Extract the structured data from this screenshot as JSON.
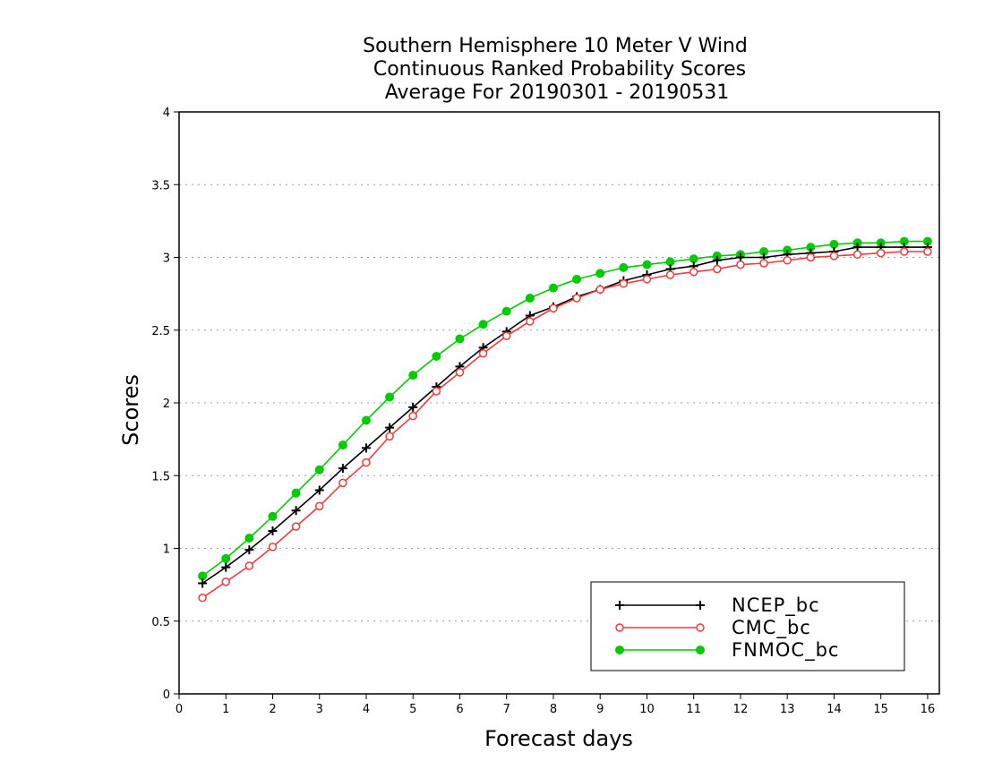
{
  "chart_data": {
    "type": "line",
    "title": [
      "Southern Hemisphere 10 Meter V Wind",
      "Continuous Ranked Probability Scores",
      "Average For 20190301 - 20190531"
    ],
    "xlabel": "Forecast days",
    "ylabel": "Scores",
    "xlim": [
      0,
      16.25
    ],
    "ylim": [
      0,
      4
    ],
    "xticks": [
      "0",
      "1",
      "2",
      "3",
      "4",
      "5",
      "6",
      "7",
      "8",
      "9",
      "10",
      "11",
      "12",
      "13",
      "14",
      "15",
      "16"
    ],
    "yticks": [
      "0",
      "0.5",
      "1",
      "1.5",
      "2",
      "2.5",
      "3",
      "3.5",
      "4"
    ],
    "grid": "horizontal dotted",
    "legend_position": "bottom-right",
    "x": [
      0.5,
      1.0,
      1.5,
      2.0,
      2.5,
      3.0,
      3.5,
      4.0,
      4.5,
      5.0,
      5.5,
      6.0,
      6.5,
      7.0,
      7.5,
      8.0,
      8.5,
      9.0,
      9.5,
      10.0,
      10.5,
      11.0,
      11.5,
      12.0,
      12.5,
      13.0,
      13.5,
      14.0,
      14.5,
      15.0,
      15.5,
      16.0
    ],
    "series": [
      {
        "name": "NCEP_bc",
        "color": "#000000",
        "marker": "plus",
        "values": [
          0.76,
          0.87,
          0.99,
          1.12,
          1.26,
          1.4,
          1.55,
          1.69,
          1.83,
          1.97,
          2.11,
          2.25,
          2.38,
          2.49,
          2.6,
          2.66,
          2.73,
          2.78,
          2.84,
          2.88,
          2.92,
          2.94,
          2.98,
          3.0,
          3.0,
          3.02,
          3.03,
          3.04,
          3.07,
          3.07,
          3.07,
          3.07
        ]
      },
      {
        "name": "CMC_bc",
        "color": "#ee3b3b",
        "marker": "open-circle",
        "values": [
          0.66,
          0.77,
          0.88,
          1.01,
          1.15,
          1.29,
          1.45,
          1.59,
          1.77,
          1.91,
          2.08,
          2.21,
          2.34,
          2.46,
          2.56,
          2.65,
          2.72,
          2.78,
          2.82,
          2.85,
          2.88,
          2.9,
          2.92,
          2.95,
          2.96,
          2.98,
          3.0,
          3.01,
          3.02,
          3.03,
          3.04,
          3.04
        ]
      },
      {
        "name": "FNMOC_bc",
        "color": "#00cc00",
        "marker": "filled-circle",
        "values": [
          0.81,
          0.93,
          1.07,
          1.22,
          1.38,
          1.54,
          1.71,
          1.88,
          2.04,
          2.19,
          2.32,
          2.44,
          2.54,
          2.63,
          2.72,
          2.79,
          2.85,
          2.89,
          2.93,
          2.95,
          2.97,
          2.99,
          3.01,
          3.02,
          3.04,
          3.05,
          3.07,
          3.09,
          3.1,
          3.1,
          3.11,
          3.11
        ]
      }
    ]
  }
}
